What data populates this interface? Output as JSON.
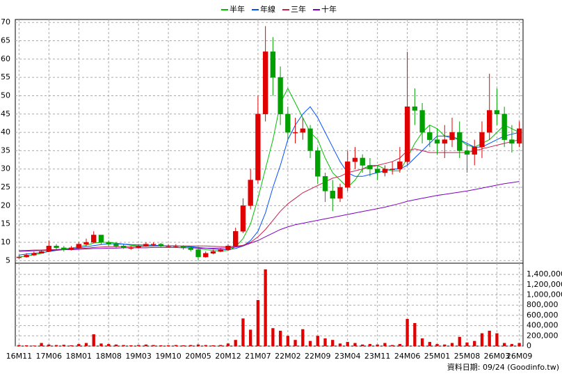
{
  "chart_data": {
    "type": "candlestick",
    "categories": [
      "16M11",
      null,
      null,
      null,
      "17M06",
      null,
      null,
      null,
      "18M01",
      null,
      null,
      null,
      "18M08",
      null,
      null,
      null,
      "19M03",
      null,
      null,
      null,
      "19M10",
      null,
      null,
      null,
      "20M05",
      null,
      null,
      null,
      "20M12",
      null,
      null,
      null,
      "21M07",
      null,
      null,
      null,
      "22M02",
      null,
      null,
      null,
      "22M09",
      null,
      null,
      null,
      "23M04",
      null,
      null,
      null,
      "23M11",
      null,
      null,
      null,
      "24M06",
      null,
      null,
      null,
      "25M01",
      null,
      null,
      null,
      "25M08",
      null,
      null,
      null,
      "26M03",
      null,
      null,
      "26M09"
    ],
    "open": [
      5.8,
      6,
      6.5,
      7,
      7.5,
      9,
      8.5,
      8,
      8.5,
      9.5,
      10,
      12,
      10,
      9.5,
      9,
      8.5,
      8.5,
      9,
      9.5,
      9.5,
      9,
      9,
      9,
      8.5,
      8,
      6,
      7,
      7.5,
      8,
      9,
      13,
      20,
      27,
      45,
      62,
      55,
      45,
      40,
      40,
      41,
      35,
      28,
      24,
      22,
      25,
      32,
      33,
      31,
      30,
      29,
      30,
      30,
      32,
      47,
      46,
      40,
      38,
      37,
      38,
      40,
      35,
      34,
      36,
      40,
      46,
      45,
      38,
      37
    ],
    "high": [
      6.5,
      7,
      7.5,
      8,
      10.5,
      9.5,
      9,
      9,
      10,
      11,
      13,
      12,
      10.5,
      10,
      9.5,
      9,
      9.5,
      10,
      10,
      9.8,
      9.5,
      9.5,
      9.2,
      8.8,
      8.2,
      7.5,
      8,
      8.5,
      9.5,
      14,
      22,
      30,
      50,
      69,
      66,
      58,
      47,
      44,
      44,
      42,
      36,
      29,
      27,
      26,
      35,
      36,
      34,
      33,
      31,
      31,
      32,
      36,
      62,
      52,
      48,
      42,
      41,
      42,
      44,
      43,
      37,
      38,
      43,
      56,
      52,
      47,
      42,
      43
    ],
    "low": [
      5.5,
      5.8,
      6.3,
      7,
      7.3,
      8,
      7.5,
      7.8,
      8.3,
      9,
      9.8,
      9.5,
      9,
      8.5,
      8.2,
      8,
      8.3,
      8.8,
      9,
      8.7,
      8.6,
      8.5,
      8,
      7.5,
      5,
      5.8,
      6.8,
      7.3,
      7.8,
      9,
      12.5,
      19,
      26,
      43,
      50,
      42,
      38,
      37,
      38,
      33,
      26,
      21,
      18.5,
      21,
      24,
      30,
      29,
      28,
      27,
      28,
      28.5,
      29,
      31,
      42,
      37,
      36,
      34,
      33,
      36,
      33,
      29,
      31,
      33,
      38,
      42,
      36,
      34.5,
      36
    ],
    "close": [
      6,
      6.5,
      7,
      7.5,
      9,
      8.5,
      8,
      8.5,
      9.5,
      10,
      12,
      10,
      9.5,
      9,
      8.5,
      8.5,
      9,
      9.5,
      9.5,
      9,
      9,
      9,
      8.5,
      8,
      6,
      7,
      7.5,
      8,
      9,
      13,
      20,
      27,
      45,
      62,
      55,
      45,
      40,
      40,
      41,
      35,
      28,
      24,
      22,
      25,
      32,
      33,
      31,
      30,
      29,
      30,
      30,
      32,
      47,
      46,
      40,
      38,
      37,
      38,
      40,
      35,
      34,
      36,
      40,
      46,
      45,
      38,
      37,
      41
    ],
    "up_color": "#e00000",
    "down_color": "#00a000",
    "series": [
      {
        "name": "半年",
        "color": "#00c000",
        "values": [
          6,
          6.3,
          6.6,
          7,
          7.6,
          8,
          8.2,
          8.4,
          8.8,
          9.2,
          9.8,
          10,
          10,
          9.8,
          9.5,
          9.2,
          9,
          9,
          9,
          9,
          9,
          9,
          8.9,
          8.7,
          8.3,
          8,
          7.8,
          7.6,
          7.8,
          8.8,
          11,
          15,
          22,
          30,
          38,
          48,
          52,
          48,
          44,
          40,
          38,
          33,
          29,
          27,
          25,
          27,
          30,
          31,
          31,
          30,
          29.5,
          29.5,
          33,
          37,
          40,
          42,
          41,
          39,
          39,
          38,
          36.5,
          36,
          37,
          38,
          40,
          42,
          41,
          40
        ]
      },
      {
        "name": "年線",
        "color": "#0050ff",
        "values": [
          6.5,
          6.8,
          7,
          7.2,
          7.5,
          7.8,
          8,
          8.2,
          8.5,
          8.8,
          9.1,
          9.4,
          9.6,
          9.6,
          9.5,
          9.4,
          9.3,
          9.3,
          9.2,
          9.1,
          9,
          9,
          8.9,
          8.8,
          8.6,
          8.4,
          8.2,
          8,
          8,
          8.3,
          9,
          10.5,
          13,
          18,
          25,
          31,
          38,
          42,
          45,
          47,
          44,
          40,
          36,
          32,
          29,
          28,
          28,
          28.5,
          29,
          29.5,
          30,
          30,
          31,
          33,
          35,
          37,
          39,
          39,
          38.5,
          38,
          37,
          36,
          36,
          37,
          38,
          39,
          39.5,
          40
        ]
      },
      {
        "name": "三年",
        "color": "#c8204a",
        "values": [
          7.8,
          7.8,
          7.9,
          7.9,
          8,
          8,
          8.1,
          8.2,
          8.3,
          8.4,
          8.6,
          8.7,
          8.8,
          8.8,
          8.8,
          8.8,
          8.9,
          8.9,
          9,
          9,
          9,
          9,
          9,
          9,
          9,
          9,
          8.9,
          8.8,
          8.8,
          8.9,
          9.2,
          10,
          11.5,
          13.5,
          16,
          18.5,
          20.5,
          22,
          23.5,
          24.5,
          25.5,
          26.5,
          27.5,
          28,
          29,
          29.5,
          30,
          30.5,
          31,
          31.5,
          32,
          33,
          35,
          35.5,
          35,
          34.5,
          34.5,
          34.5,
          34.5,
          34.5,
          34.5,
          35,
          35.5,
          36,
          36.5,
          37,
          37.5,
          38
        ]
      },
      {
        "name": "十年",
        "color": "#8000c0",
        "values": [
          7.5,
          7.6,
          7.7,
          7.8,
          7.8,
          7.9,
          8,
          8,
          8.1,
          8.2,
          8.3,
          8.3,
          8.4,
          8.4,
          8.5,
          8.5,
          8.5,
          8.5,
          8.6,
          8.6,
          8.6,
          8.6,
          8.5,
          8.5,
          8.4,
          8.4,
          8.4,
          8.4,
          8.5,
          8.7,
          9,
          9.8,
          10.5,
          11.5,
          12.5,
          13.5,
          14.2,
          14.8,
          15.2,
          15.6,
          16,
          16.4,
          16.8,
          17.2,
          17.6,
          18,
          18.4,
          18.8,
          19.2,
          19.6,
          20.1,
          20.6,
          21.2,
          21.6,
          22,
          22.4,
          22.8,
          23.1,
          23.4,
          23.7,
          24,
          24.4,
          24.8,
          25.2,
          25.6,
          26,
          26.3,
          26.6
        ]
      }
    ],
    "ylim": [
      4.3,
      70.8
    ],
    "yticks": [
      5,
      10,
      15,
      20,
      25,
      30,
      35,
      40,
      45,
      50,
      55,
      60,
      65,
      70
    ],
    "volume": {
      "color": "#e00000",
      "values": [
        20000,
        15000,
        10000,
        60000,
        30000,
        20000,
        25000,
        15000,
        40000,
        60000,
        230000,
        50000,
        40000,
        30000,
        20000,
        15000,
        20000,
        30000,
        20000,
        15000,
        15000,
        20000,
        15000,
        20000,
        30000,
        20000,
        15000,
        20000,
        50000,
        120000,
        540000,
        320000,
        900000,
        1500000,
        350000,
        300000,
        200000,
        120000,
        330000,
        100000,
        200000,
        150000,
        120000,
        50000,
        80000,
        60000,
        30000,
        40000,
        30000,
        60000,
        20000,
        40000,
        530000,
        450000,
        150000,
        80000,
        40000,
        30000,
        60000,
        180000,
        70000,
        100000,
        250000,
        300000,
        250000,
        60000,
        40000,
        60000
      ],
      "ylim": [
        0,
        1620000
      ],
      "yticks": [
        0,
        {
          "value": 200000,
          "label": "200,000"
        },
        {
          "value": 400000,
          "label": "400,000"
        },
        {
          "value": 600000,
          "label": "600,000"
        },
        {
          "value": 800000,
          "label": "800,000"
        },
        {
          "value": 1000000,
          "label": "1,000,000"
        },
        {
          "value": 1200000,
          "label": "1,200,000"
        },
        {
          "value": 1400000,
          "label": "1,400,000"
        }
      ]
    },
    "grid": true,
    "footer": "資料日期: 09/24 (Goodinfo.tw)"
  }
}
